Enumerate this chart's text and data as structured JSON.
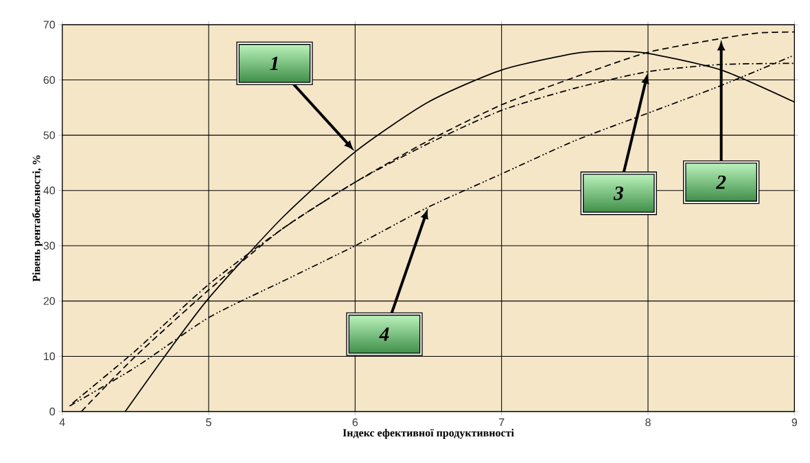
{
  "chart_data": {
    "type": "line",
    "xlabel": "Індекс ефективної продуктивності",
    "ylabel": "Рівень рентабельності, %",
    "xlim": [
      4,
      9
    ],
    "ylim": [
      0,
      70
    ],
    "xticks": [
      4,
      5,
      6,
      7,
      8,
      9
    ],
    "yticks": [
      0,
      10,
      20,
      30,
      40,
      50,
      60,
      70
    ],
    "grid": true,
    "marker": "none",
    "series": [
      {
        "name": "1",
        "color": "#000000",
        "line_style": "solid",
        "x": [
          4.43,
          4.7,
          5,
          5.5,
          6,
          6.5,
          7,
          7.5,
          7.75,
          8,
          8.5,
          9
        ],
        "values": [
          0,
          10,
          20.5,
          35,
          47,
          56,
          61.8,
          64.8,
          65.2,
          64.8,
          61.8,
          56
        ]
      },
      {
        "name": "2",
        "color": "#000000",
        "line_style": "dashed",
        "x": [
          4.13,
          4.5,
          5,
          5.5,
          6,
          6.5,
          7,
          7.5,
          8,
          8.5,
          8.75,
          9
        ],
        "values": [
          0,
          10,
          22,
          33,
          41.5,
          49,
          55.5,
          60.5,
          65,
          67.5,
          68.5,
          68.7
        ]
      },
      {
        "name": "3",
        "color": "#000000",
        "line_style": "dashdot",
        "x": [
          4.07,
          4.5,
          5,
          5.5,
          6,
          6.5,
          7,
          7.5,
          8,
          8.5,
          9
        ],
        "values": [
          1.5,
          11,
          23,
          33,
          41.5,
          48.5,
          54.5,
          58.5,
          61.5,
          62.8,
          63
        ]
      },
      {
        "name": "4",
        "color": "#000000",
        "line_style": "dashdotdot",
        "x": [
          4.05,
          4.5,
          5,
          5.5,
          6,
          6.5,
          7,
          7.5,
          8,
          8.5,
          9
        ],
        "values": [
          1,
          8,
          17,
          23.5,
          30,
          37,
          43,
          49,
          54,
          59,
          64.5
        ]
      }
    ]
  }
}
